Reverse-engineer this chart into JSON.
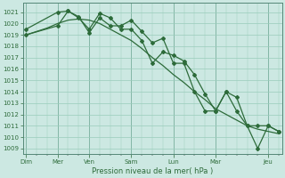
{
  "bg_color": "#cce8e2",
  "grid_color": "#99ccbb",
  "line_color": "#2d6b3a",
  "xlabel": "Pression niveau de la mer( hPa )",
  "ylim": [
    1008.5,
    1021.8
  ],
  "yticks": [
    1009,
    1010,
    1011,
    1012,
    1013,
    1014,
    1015,
    1016,
    1017,
    1018,
    1019,
    1020,
    1021
  ],
  "xlim": [
    -0.15,
    12.15
  ],
  "xtick_positions": [
    0,
    1.5,
    3,
    5,
    7,
    9,
    11.5
  ],
  "xtick_labels": [
    "Dim",
    "Mer",
    "Ven",
    "Sam",
    "Lun",
    "Mar",
    "Jeu"
  ],
  "vline_positions": [
    0,
    1.5,
    3,
    5,
    7,
    9,
    11.5
  ],
  "line1_x": [
    0,
    0.5,
    1.0,
    1.5,
    2.0,
    2.5,
    3.0,
    3.5,
    4.0,
    4.5,
    5.0,
    5.5,
    6.0,
    6.5,
    7.0,
    7.5,
    8.0,
    8.5,
    9.0,
    9.5,
    10.0,
    10.5,
    11.0,
    11.5,
    12.0
  ],
  "line1_y": [
    1019.0,
    1019.3,
    1019.6,
    1020.0,
    1020.3,
    1020.4,
    1020.3,
    1020.0,
    1019.5,
    1019.0,
    1018.5,
    1017.8,
    1017.0,
    1016.3,
    1015.5,
    1014.8,
    1014.0,
    1013.3,
    1012.5,
    1012.0,
    1011.5,
    1011.0,
    1010.7,
    1010.5,
    1010.3
  ],
  "line2_x": [
    0,
    1.5,
    2.0,
    2.5,
    3.0,
    3.5,
    4.0,
    4.5,
    5.0,
    5.5,
    6.0,
    6.5,
    7.0,
    7.5,
    8.0,
    8.5,
    9.0,
    9.5,
    10.0,
    10.5,
    11.0,
    11.5,
    12.0
  ],
  "line2_y": [
    1019.5,
    1021.0,
    1021.1,
    1020.6,
    1019.2,
    1020.5,
    1019.8,
    1019.8,
    1020.3,
    1019.3,
    1018.3,
    1018.7,
    1016.5,
    1016.5,
    1014.0,
    1012.3,
    1012.3,
    1014.0,
    1013.5,
    1011.0,
    1009.0,
    1011.0,
    1010.5
  ],
  "line3_x": [
    0,
    1.5,
    2.0,
    2.5,
    3.0,
    3.5,
    4.0,
    4.5,
    5.0,
    5.5,
    6.0,
    6.5,
    7.0,
    7.5,
    8.0,
    8.5,
    9.0,
    9.5,
    10.0,
    10.5,
    11.0,
    11.5,
    12.0
  ],
  "line3_y": [
    1019.0,
    1019.8,
    1021.1,
    1020.5,
    1019.5,
    1020.9,
    1020.5,
    1019.5,
    1019.5,
    1018.5,
    1016.5,
    1017.5,
    1017.2,
    1016.7,
    1015.5,
    1013.8,
    1012.3,
    1014.0,
    1012.3,
    1011.0,
    1011.0,
    1011.0,
    1010.5
  ]
}
